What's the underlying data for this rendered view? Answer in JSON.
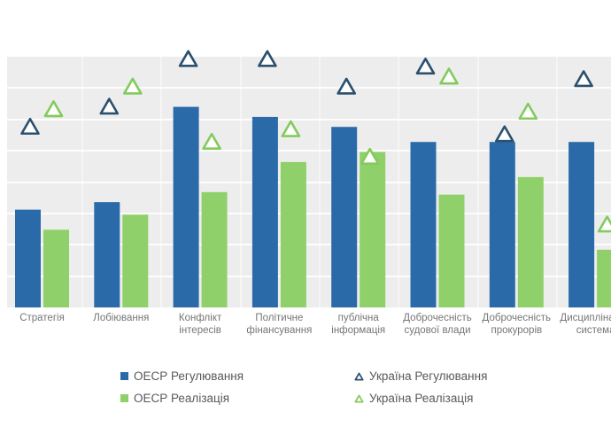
{
  "colors": {
    "oecd_regulation_bar": "#2a6aa9",
    "oecd_implementation_bar": "#8fd06a",
    "ukraine_regulation_marker": "#2b506e",
    "ukraine_implementation_marker": "#82cb5c",
    "plot_background": "#ededed",
    "gridline": "#f7f7f7",
    "axis_text": "#767676",
    "legend_text": "#595959",
    "page_background": "#ffffff"
  },
  "chart_data": {
    "type": "bar",
    "subtype": "grouped bars with triangle point markers",
    "title": "",
    "xlabel": "",
    "ylabel": "",
    "y_axis_note": "no visible y-axis tick labels; values estimated as percent of plot height from gridlines",
    "ylim": [
      0,
      100
    ],
    "grid": true,
    "gridlines_horizontal": 7,
    "legend_position": "bottom",
    "categories": [
      "Стратегія",
      "Лобіювання",
      "Конфлікт\nінтересів",
      "Політичне\nфінансування",
      "публічна\nінформація",
      "Доброчесність\nсудової влади",
      "Доброчесність\nпрокурорів",
      "Дисциплінарна\nсистема"
    ],
    "series": [
      {
        "name": "ОЕСР Регулювання",
        "marker": "bar",
        "color_key": "oecd_regulation_bar",
        "values": [
          39,
          42,
          80,
          76,
          72,
          66,
          66,
          66
        ]
      },
      {
        "name": "ОЕСР Реалізація",
        "marker": "bar",
        "color_key": "oecd_implementation_bar",
        "values": [
          31,
          37,
          46,
          58,
          62,
          45,
          52,
          23
        ]
      },
      {
        "name": "Україна Регулювання",
        "marker": "triangle-outline",
        "color_key": "ukraine_regulation_marker",
        "values": [
          72,
          80,
          99,
          99,
          88,
          96,
          69,
          91
        ]
      },
      {
        "name": "Україна Реалізація",
        "marker": "triangle-outline",
        "color_key": "ukraine_implementation_marker",
        "values": [
          79,
          88,
          66,
          71,
          60,
          92,
          78,
          33
        ]
      }
    ]
  },
  "legend": {
    "items": [
      {
        "label": "ОЕСР Регулювання",
        "marker": "square",
        "color_key": "oecd_regulation_bar"
      },
      {
        "label": "ОЕСР Реалізація",
        "marker": "square",
        "color_key": "oecd_implementation_bar"
      },
      {
        "label": "Україна Регулювання",
        "marker": "triangle",
        "color_key": "ukraine_regulation_marker"
      },
      {
        "label": "Україна Реалізація",
        "marker": "triangle",
        "color_key": "ukraine_implementation_marker"
      }
    ]
  }
}
